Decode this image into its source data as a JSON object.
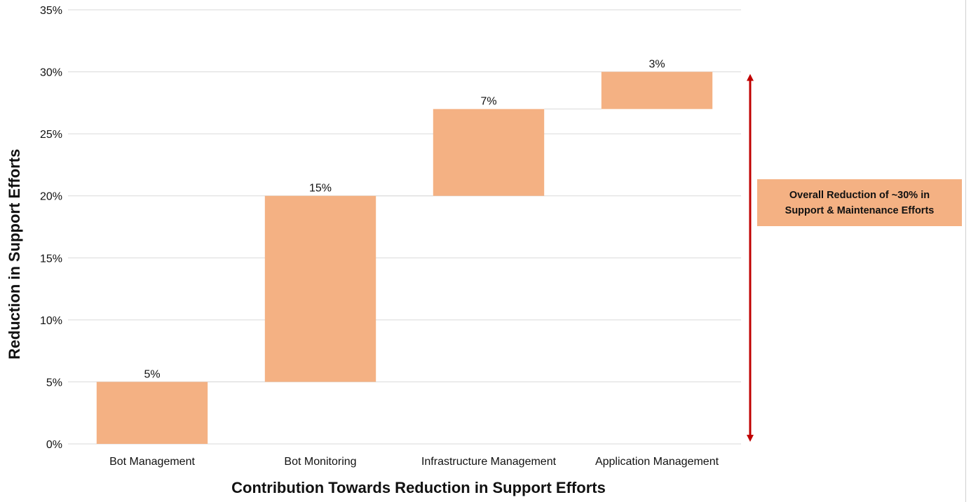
{
  "chart_data": {
    "type": "bar",
    "subtype": "waterfall",
    "categories": [
      "Bot Management",
      "Bot Monitoring",
      "Infrastructure Management",
      "Application Management"
    ],
    "values": [
      5,
      15,
      7,
      3
    ],
    "data_labels": [
      "5%",
      "15%",
      "7%",
      "3%"
    ],
    "xlabel": "Contribution Towards Reduction in Support Efforts",
    "ylabel": "Reduction in Support Efforts",
    "ylim": [
      0,
      35
    ],
    "yticks": [
      0,
      5,
      10,
      15,
      20,
      25,
      30,
      35
    ],
    "ytick_labels": [
      "0%",
      "5%",
      "10%",
      "15%",
      "20%",
      "25%",
      "30%",
      "35%"
    ],
    "grid": true,
    "bar_color": "#f4b183",
    "arrow_color": "#c00000",
    "annotation": {
      "line1": "Overall Reduction of ~30% in",
      "line2": "Support & Maintenance Efforts",
      "range": [
        0,
        30
      ],
      "color": "#f4b183"
    }
  }
}
